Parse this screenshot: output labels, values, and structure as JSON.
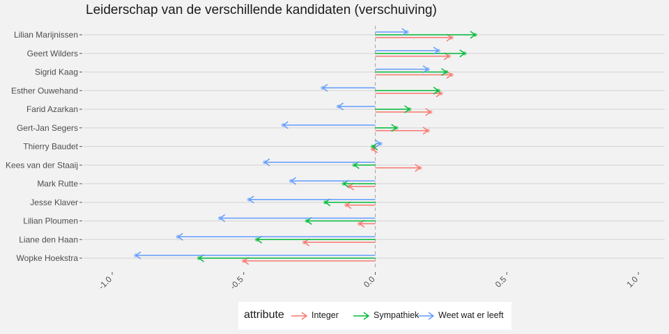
{
  "chart_data": {
    "type": "dumbbell-arrow",
    "title": "Leiderschap van de verschillende kandidaten (verschuiving)",
    "xlabel": "",
    "ylabel": "",
    "xlim": [
      -1.0,
      1.0
    ],
    "x_ticks": [
      "-1.0",
      "-0.5",
      "0.0",
      "0.5",
      "1.0"
    ],
    "categories": [
      "Lilian Marijnissen",
      "Geert Wilders",
      "Sigrid Kaag",
      "Esther Ouwehand",
      "Farid Azarkan",
      "Gert-Jan Segers",
      "Thierry Baudet",
      "Kees van der Staaij",
      "Mark Rutte",
      "Jesse Klaver",
      "Lilian Ploumen",
      "Liane den Haan",
      "Wopke Hoekstra"
    ],
    "series": [
      {
        "name": "Integer",
        "color": "#f8766d",
        "values": [
          0.29,
          0.28,
          0.29,
          0.25,
          0.21,
          0.2,
          -0.01,
          0.17,
          -0.1,
          -0.11,
          -0.06,
          -0.27,
          -0.5
        ]
      },
      {
        "name": "Sympathiek",
        "color": "#00ba38",
        "values": [
          0.38,
          0.34,
          0.27,
          0.24,
          0.13,
          0.08,
          -0.01,
          -0.08,
          -0.12,
          -0.19,
          -0.26,
          -0.45,
          -0.67
        ]
      },
      {
        "name": "Weet wat er leeft",
        "color": "#619cff",
        "values": [
          0.12,
          0.24,
          0.2,
          -0.2,
          -0.14,
          -0.35,
          0.02,
          -0.42,
          -0.32,
          -0.48,
          -0.59,
          -0.75,
          -0.91
        ]
      }
    ],
    "legend": {
      "title": "attribute",
      "position": "bottom"
    },
    "grid": true,
    "reference_line": 0.0
  }
}
